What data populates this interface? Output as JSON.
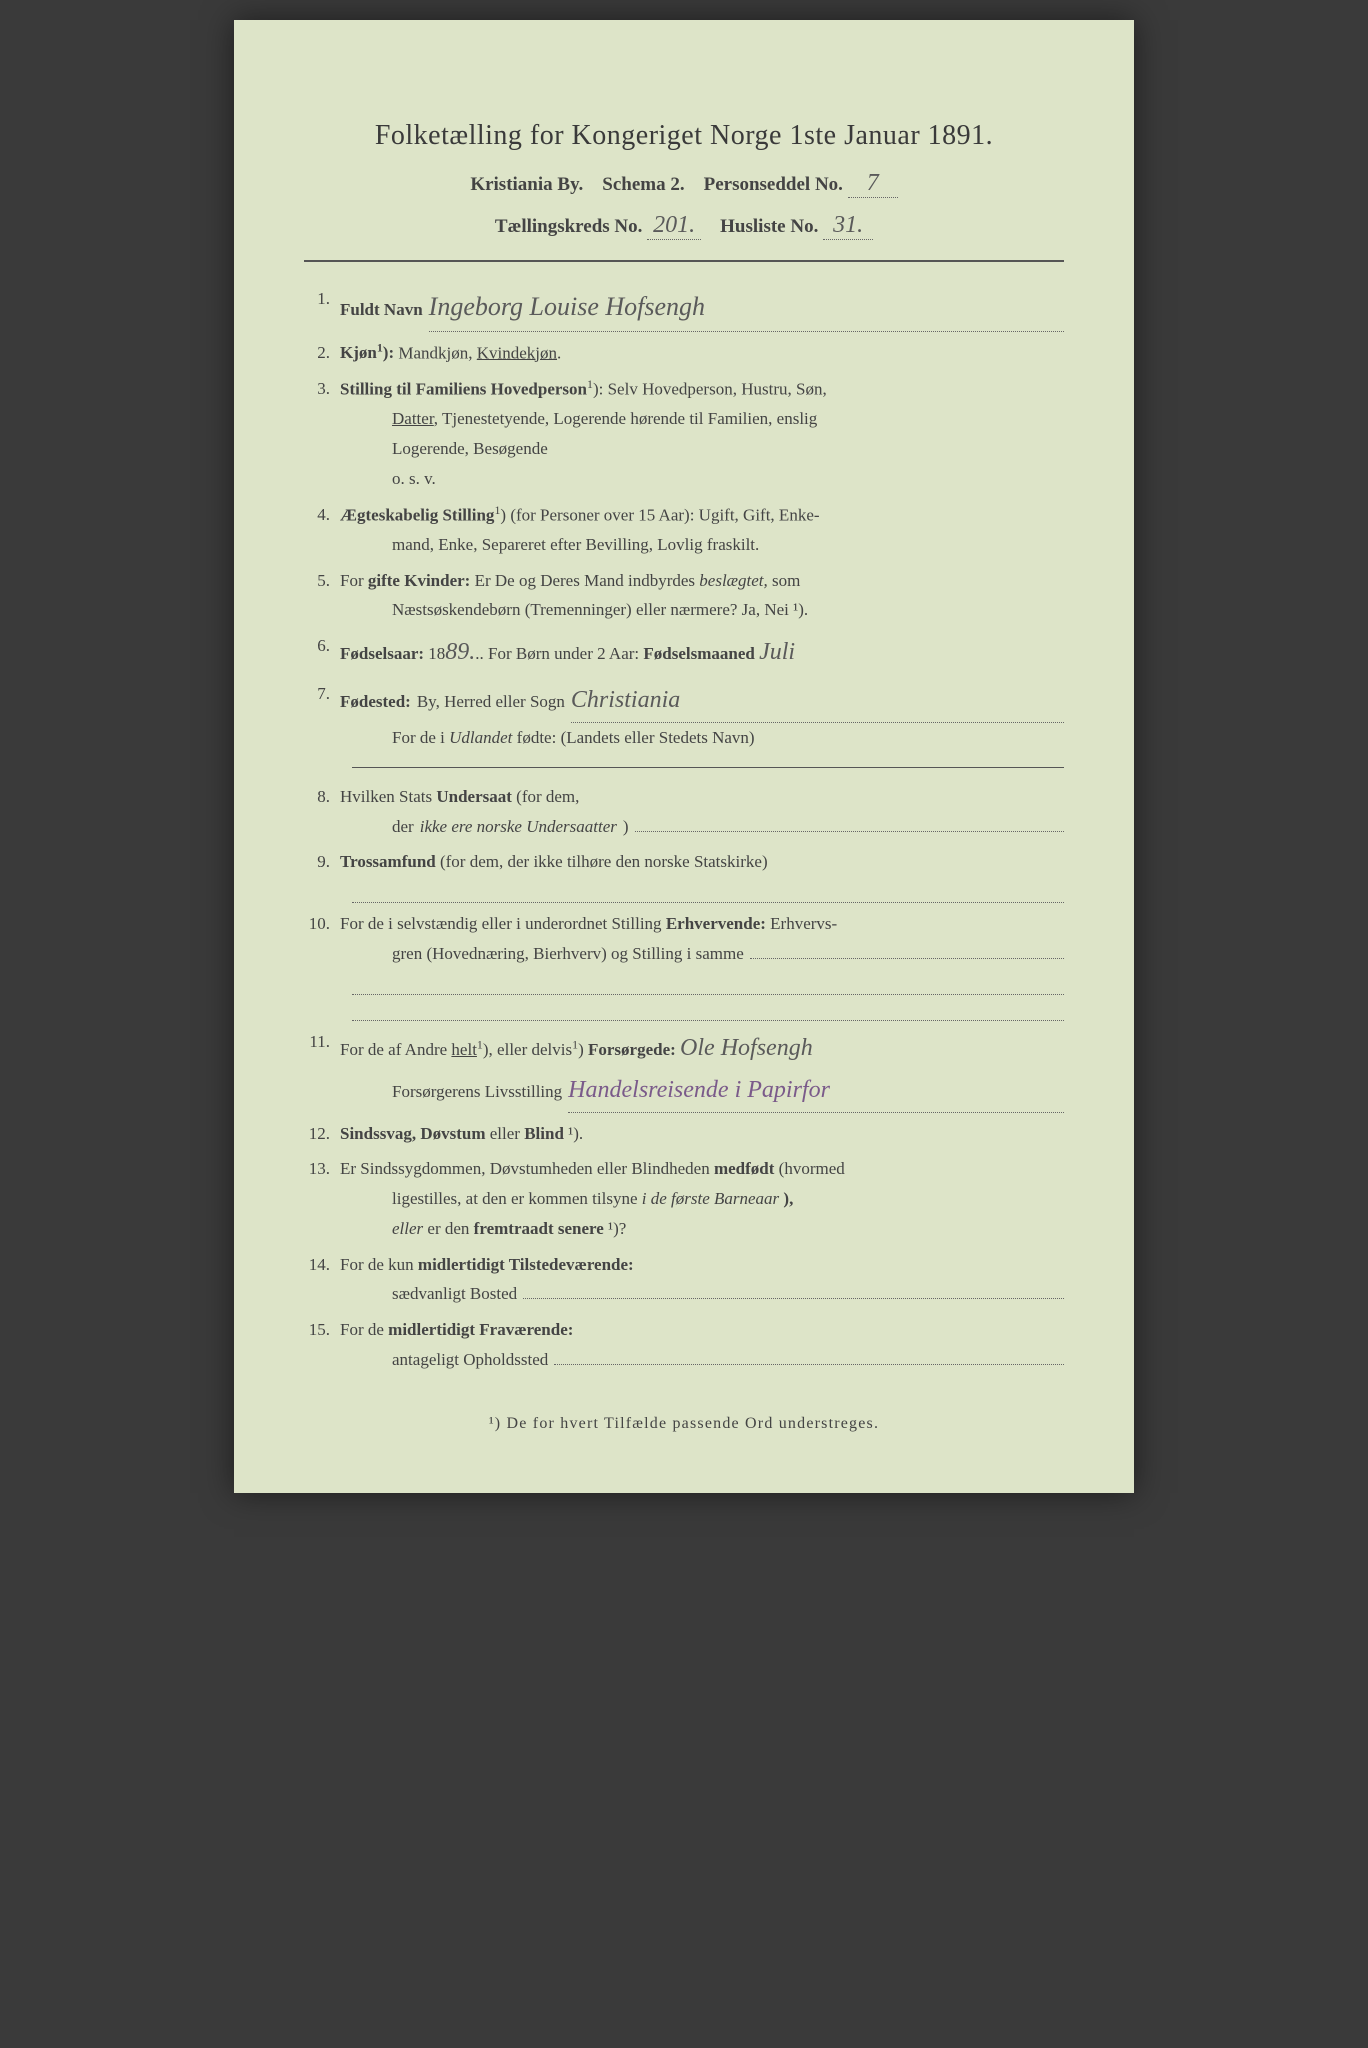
{
  "header": {
    "title": "Folketælling for Kongeriget Norge 1ste Januar 1891.",
    "city": "Kristiania By.",
    "schema": "Schema 2.",
    "personseddel_label": "Personseddel No.",
    "personseddel_no": "7",
    "tkreds_label": "Tællingskreds No.",
    "tkreds_no": "201.",
    "husliste_label": "Husliste No.",
    "husliste_no": "31."
  },
  "items": {
    "i1": {
      "num": "1.",
      "label": "Fuldt Navn",
      "value": "Ingeborg Louise Hofsengh"
    },
    "i2": {
      "num": "2.",
      "text": "Kjøn¹): Mandkjøn, Kvindekjøn.",
      "underlined": "Kvindekjøn"
    },
    "i3": {
      "num": "3.",
      "label": "Stilling til Familiens Hovedperson",
      "sup": "¹):",
      "text1": " Selv Hovedperson, Hustru, Søn,",
      "text2": "Datter, Tjenestetyende, Logerende hørende til Familien, enslig",
      "text3": "Logerende, Besøgende",
      "text4": "o. s. v.",
      "underlined": "Datter"
    },
    "i4": {
      "num": "4.",
      "label": "Ægteskabelig Stilling",
      "sup": "¹)",
      "text1": " (for Personer over 15 Aar): Ugift, Gift, Enke-",
      "text2": "mand, Enke, Separeret efter Bevilling, Lovlig fraskilt."
    },
    "i5": {
      "num": "5.",
      "text1": "For ",
      "bold1": "gifte Kvinder:",
      "text2": " Er De og Deres Mand indbyrdes ",
      "ital1": "beslægtet,",
      "text3": " som",
      "text4": "Næstsøskendebørn (Tremenninger) eller nærmere?  Ja, Nei ¹)."
    },
    "i6": {
      "num": "6.",
      "bold1": "Fødselsaar:",
      "year_prefix": " 18",
      "year": "89.",
      "text2": "   For Børn under 2 Aar: ",
      "bold2": "Fødselsmaaned",
      "month": " Juli"
    },
    "i7": {
      "num": "7.",
      "bold1": "Fødested:",
      "text1": " By, Herred eller Sogn",
      "place": "Christiania",
      "text2": "For de i ",
      "ital1": "Udlandet",
      "text3": " fødte: (Landets eller Stedets Navn)"
    },
    "i8": {
      "num": "8.",
      "text1": "Hvilken Stats ",
      "bold1": "Undersaat",
      "text2": " (for dem,",
      "text3": "der ",
      "ital1": "ikke ere norske Undersaatter",
      "text4": ")"
    },
    "i9": {
      "num": "9.",
      "bold1": "Trossamfund",
      "text1": "  (for dem,  der ikke  tilhøre  den  norske  Statskirke)"
    },
    "i10": {
      "num": "10.",
      "text1": "For de i selvstændig eller i underordnet Stilling ",
      "bold1": "Erhvervende:",
      "text2": " Erhvervs-",
      "text3": "gren (Hovednæring, Bierhverv) og Stilling i samme"
    },
    "i11": {
      "num": "11.",
      "text1": "For de af Andre ",
      "u1": "helt",
      "sup1": "¹),",
      "text2": " eller delvis",
      "sup2": "¹)",
      "bold1": " Forsørgede:",
      "value1": " Ole Hofsengh",
      "text3": "Forsørgerens Livsstilling",
      "value2": "Handelsreisende i Papirfor"
    },
    "i12": {
      "num": "12.",
      "bold1": "Sindssvag, Døvstum",
      "text1": " eller ",
      "bold2": "Blind",
      "sup": " ¹)."
    },
    "i13": {
      "num": "13.",
      "text1": "Er Sindssygdommen, Døvstumheden eller Blindheden ",
      "bold1": "medfødt",
      "text2": " (hvormed",
      "text3": "ligestilles, at den er kommen tilsyne ",
      "ital1": "i de første Barneaar",
      "bold2": "),",
      "ital2": "eller",
      "text4": " er den ",
      "bold3": "fremtraadt senere",
      "sup": " ¹)?"
    },
    "i14": {
      "num": "14.",
      "text1": "For de kun ",
      "bold1": "midlertidigt Tilstedeværende:",
      "text2": "sædvanligt Bosted"
    },
    "i15": {
      "num": "15.",
      "text1": "For de ",
      "bold1": "midlertidigt Fraværende:",
      "text2": "antageligt Opholdssted"
    }
  },
  "footnote": "¹) De for hvert Tilfælde passende Ord understreges."
}
